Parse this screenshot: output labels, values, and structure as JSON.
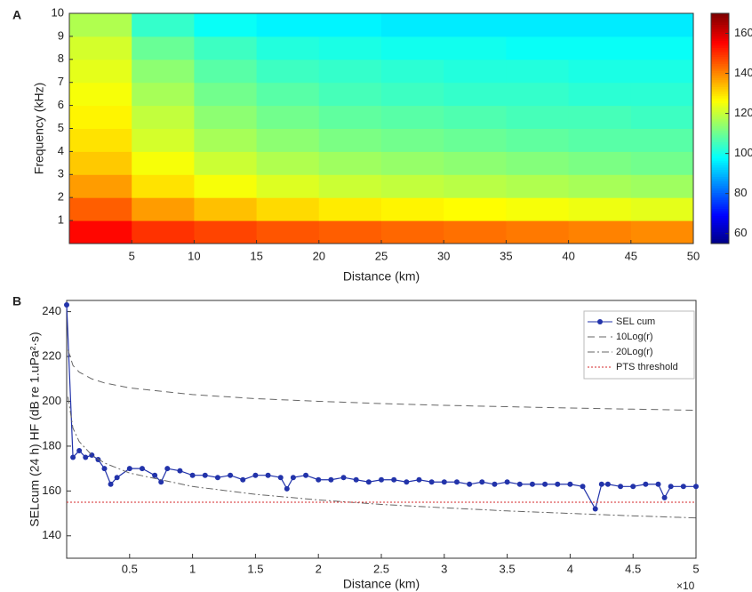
{
  "chart_data": [
    {
      "type": "heatmap",
      "panel_label": "A",
      "x_label": "Distance (km)",
      "y_label": "Frequency (kHz)",
      "x": [
        2.5,
        7.5,
        12.5,
        17.5,
        22.5,
        27.5,
        32.5,
        37.5,
        42.5,
        47.5
      ],
      "y": [
        0.5,
        1.5,
        2.5,
        3.5,
        4.5,
        5.5,
        6.5,
        7.5,
        8.5,
        9.5
      ],
      "z": [
        [
          155,
          150,
          148,
          146,
          145,
          144,
          143,
          142,
          141,
          140
        ],
        [
          145,
          138,
          134,
          131,
          129,
          128,
          127,
          126,
          125,
          124
        ],
        [
          138,
          130,
          126,
          123,
          121,
          120,
          119,
          118,
          117,
          116
        ],
        [
          133,
          126,
          121,
          118,
          116,
          115,
          114,
          113,
          112,
          111
        ],
        [
          130,
          122,
          117,
          114,
          112,
          111,
          110,
          109,
          108,
          108
        ],
        [
          128,
          120,
          114,
          111,
          109,
          108,
          107,
          106,
          106,
          105
        ],
        [
          126,
          117,
          111,
          108,
          106,
          105,
          104,
          104,
          103,
          103
        ],
        [
          124,
          114,
          108,
          105,
          104,
          103,
          102,
          102,
          101,
          101
        ],
        [
          122,
          110,
          105,
          102,
          101,
          100,
          100,
          99,
          99,
          99
        ],
        [
          118,
          104,
          99,
          97,
          97,
          96,
          96,
          96,
          96,
          96
        ]
      ],
      "xlim": [
        0,
        50
      ],
      "xticks": [
        5,
        10,
        15,
        20,
        25,
        30,
        35,
        40,
        45,
        50
      ],
      "ylim": [
        0,
        10
      ],
      "yticks": [
        1,
        2,
        3,
        4,
        5,
        6,
        7,
        8,
        9,
        10
      ],
      "colormap": "jet",
      "clim": [
        55,
        170
      ],
      "cticks": [
        60,
        80,
        100,
        120,
        140,
        160
      ]
    },
    {
      "type": "line",
      "panel_label": "B",
      "x_label": "Distance (km)",
      "y_label": "SELcum (24 h) HF (dB re 1.uPa²·s)",
      "x_exponent_label": "×10",
      "xlim": [
        0,
        5
      ],
      "xticks": [
        0.5,
        1,
        1.5,
        2,
        2.5,
        3,
        3.5,
        4,
        4.5,
        5
      ],
      "ylim": [
        130,
        245
      ],
      "yticks": [
        140,
        160,
        180,
        200,
        220,
        240
      ],
      "legend": "upper right",
      "series": [
        {
          "name": "SEL cum",
          "color": "#2233aa",
          "line_style": "solid",
          "marker": "circle",
          "x": [
            0,
            0.05,
            0.1,
            0.15,
            0.2,
            0.25,
            0.3,
            0.35,
            0.4,
            0.5,
            0.6,
            0.7,
            0.75,
            0.8,
            0.9,
            1,
            1.1,
            1.2,
            1.3,
            1.4,
            1.5,
            1.6,
            1.7,
            1.75,
            1.8,
            1.9,
            2,
            2.1,
            2.2,
            2.3,
            2.4,
            2.5,
            2.6,
            2.7,
            2.8,
            2.9,
            3,
            3.1,
            3.2,
            3.3,
            3.4,
            3.5,
            3.6,
            3.7,
            3.8,
            3.9,
            4,
            4.1,
            4.2,
            4.25,
            4.3,
            4.4,
            4.5,
            4.6,
            4.7,
            4.75,
            4.8,
            4.9,
            5
          ],
          "values": [
            243,
            175,
            178,
            175,
            176,
            174,
            170,
            163,
            166,
            170,
            170,
            167,
            164,
            170,
            169,
            167,
            167,
            166,
            167,
            165,
            167,
            167,
            166,
            161,
            166,
            167,
            165,
            165,
            166,
            165,
            164,
            165,
            165,
            164,
            165,
            164,
            164,
            164,
            163,
            164,
            163,
            164,
            163,
            163,
            163,
            163,
            163,
            162,
            152,
            163,
            163,
            162,
            162,
            163,
            163,
            157,
            162,
            162,
            162
          ]
        },
        {
          "name": "10Log(r)",
          "color": "#666666",
          "line_style": "dashed",
          "x": [
            0.01,
            0.05,
            0.1,
            0.2,
            0.3,
            0.5,
            1,
            1.5,
            2,
            2.5,
            3,
            3.5,
            4,
            4.5,
            5
          ],
          "values": [
            223,
            216,
            213,
            210,
            208.2,
            206,
            203,
            201.2,
            200,
            199,
            198.2,
            197.6,
            197,
            196.5,
            196
          ]
        },
        {
          "name": "20Log(r)",
          "color": "#666666",
          "line_style": "dashdot",
          "x": [
            0.01,
            0.05,
            0.1,
            0.2,
            0.3,
            0.5,
            1,
            1.5,
            2,
            2.5,
            3,
            3.5,
            4,
            4.5,
            5
          ],
          "values": [
            202,
            188,
            182,
            176,
            172.5,
            168,
            162,
            158.5,
            156,
            154,
            152.5,
            151.1,
            150,
            148.9,
            148
          ]
        },
        {
          "name": "PTS threshold",
          "color": "#d62728",
          "line_style": "dotted",
          "x": [
            0,
            5
          ],
          "values": [
            155,
            155
          ]
        }
      ]
    }
  ]
}
